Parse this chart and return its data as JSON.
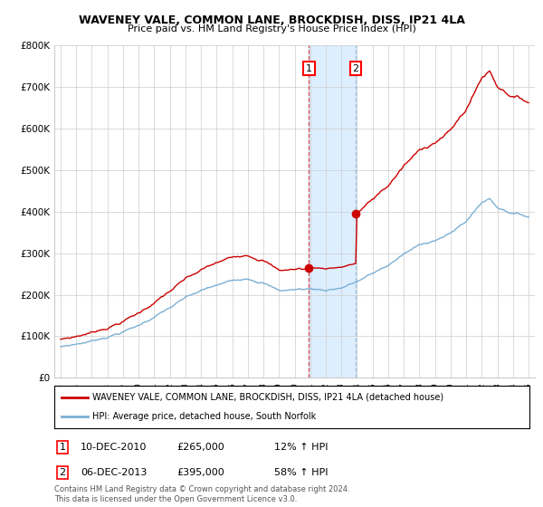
{
  "title_line1": "WAVENEY VALE, COMMON LANE, BROCKDISH, DISS, IP21 4LA",
  "title_line2": "Price paid vs. HM Land Registry's House Price Index (HPI)",
  "ylim": [
    0,
    800000
  ],
  "yticks": [
    0,
    100000,
    200000,
    300000,
    400000,
    500000,
    600000,
    700000,
    800000
  ],
  "ytick_labels": [
    "£0",
    "£100K",
    "£200K",
    "£300K",
    "£400K",
    "£500K",
    "£600K",
    "£700K",
    "£800K"
  ],
  "legend_entry1": "WAVENEY VALE, COMMON LANE, BROCKDISH, DISS, IP21 4LA (detached house)",
  "legend_entry2": "HPI: Average price, detached house, South Norfolk",
  "sale1_label": "1",
  "sale1_date": "10-DEC-2010",
  "sale1_price": "£265,000",
  "sale1_hpi": "12% ↑ HPI",
  "sale1_x": 2010.92,
  "sale1_y": 265000,
  "sale2_label": "2",
  "sale2_date": "06-DEC-2013",
  "sale2_price": "£395,000",
  "sale2_hpi": "58% ↑ HPI",
  "sale2_x": 2013.92,
  "sale2_y": 395000,
  "shade_x1": 2010.92,
  "shade_x2": 2013.92,
  "copyright_text": "Contains HM Land Registry data © Crown copyright and database right 2024.\nThis data is licensed under the Open Government Licence v3.0.",
  "hpi_color": "#7bafd4",
  "sale_color": "#cc0000",
  "shade_color": "#ddeeff",
  "background_color": "#ffffff",
  "grid_color": "#cccccc",
  "xlim_left": 1994.6,
  "xlim_right": 2025.4
}
